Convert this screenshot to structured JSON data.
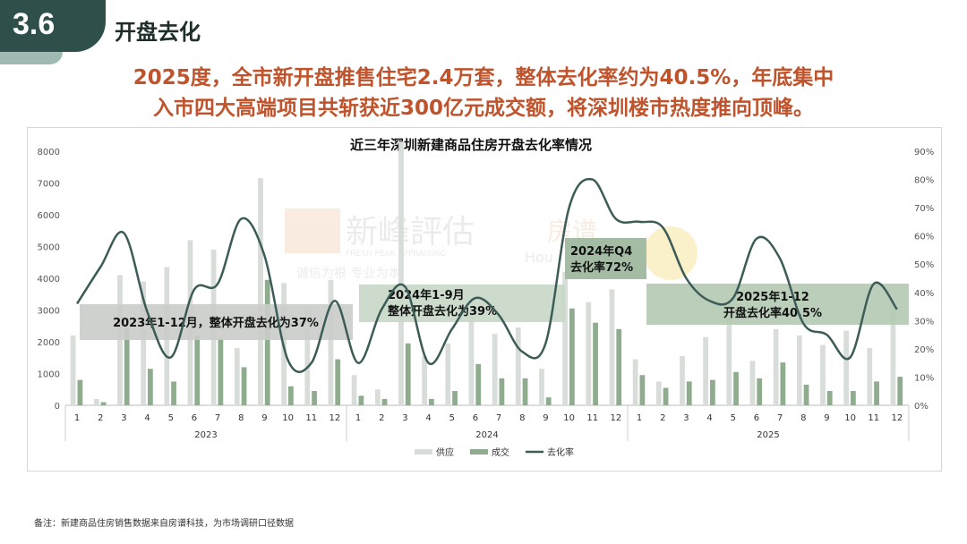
{
  "section": {
    "number": "3.6",
    "title": "开盘去化"
  },
  "headline": {
    "line1": "2025度，全市新开盘推售住宅2.4万套，整体去化率约为40.5%，年底集中",
    "line2": "入市四大高端项目共斩获近300亿元成交额，将深圳楼市热度推向顶峰。"
  },
  "watermark": {
    "brand1": "新峰評估",
    "brand1_en": "FRESH PEAK APPRAISING",
    "brand1_slogan": "诚信为根  专业为本",
    "brand2": "房谱",
    "brand2_en": "Hou"
  },
  "chart_data": {
    "type": "bar+line",
    "title": "近三年深圳新建商品住房开盘去化率情况",
    "years": [
      "2023",
      "2024",
      "2025"
    ],
    "months": [
      "1",
      "2",
      "3",
      "4",
      "5",
      "6",
      "7",
      "8",
      "9",
      "10",
      "11",
      "12",
      "1",
      "2",
      "3",
      "4",
      "5",
      "6",
      "7",
      "8",
      "9",
      "10",
      "11",
      "12",
      "1",
      "2",
      "3",
      "4",
      "5",
      "6",
      "7",
      "8",
      "9",
      "10",
      "11",
      "12"
    ],
    "y_left": {
      "min": 0,
      "max": 8000,
      "ticks": [
        "0",
        "1000",
        "2000",
        "3000",
        "4000",
        "5000",
        "6000",
        "7000",
        "8000"
      ]
    },
    "y_right": {
      "min": 0,
      "max": 90,
      "ticks": [
        "0%",
        "10%",
        "20%",
        "30%",
        "40%",
        "50%",
        "60%",
        "70%",
        "80%",
        "90%"
      ]
    },
    "series": [
      {
        "name": "供应",
        "color": "#d9ddd9",
        "values": [
          2200,
          200,
          4100,
          3900,
          4350,
          5200,
          4900,
          1800,
          7150,
          3850,
          3050,
          3950,
          950,
          500,
          8300,
          1550,
          1950,
          3050,
          2250,
          2450,
          1150,
          4200,
          3250,
          3650,
          1450,
          750,
          1550,
          2150,
          2750,
          1400,
          2400,
          2200,
          1900,
          2350,
          1800,
          3250
        ]
      },
      {
        "name": "成交",
        "color": "#8fac8f",
        "values": [
          800,
          100,
          2450,
          1150,
          750,
          2200,
          2100,
          1200,
          3950,
          600,
          450,
          1450,
          300,
          200,
          1950,
          200,
          450,
          1300,
          850,
          850,
          250,
          3050,
          2600,
          2400,
          950,
          550,
          750,
          800,
          1050,
          850,
          1350,
          650,
          450,
          450,
          750,
          900
        ]
      },
      {
        "name": "去化率",
        "color": "#3d5c57",
        "values": [
          36,
          49,
          61,
          33,
          17,
          41,
          43,
          66,
          53,
          16,
          15,
          37,
          15,
          34,
          42,
          15,
          27,
          38,
          32,
          19,
          22,
          70,
          80,
          66,
          65,
          63,
          45,
          37,
          38,
          59,
          52,
          29,
          25,
          17,
          43,
          34
        ]
      }
    ],
    "annotations": [
      {
        "text": "2023年1-12月，整体开盘去化为37%"
      },
      {
        "text1": "2024年1-9月",
        "text2": "整体开盘去化为39%"
      },
      {
        "text1": "2024年Q4",
        "text2": "去化率72%"
      },
      {
        "text1": "2025年1-12",
        "text2": "开盘去化率40.5%"
      }
    ],
    "legend_position": "bottom-center"
  },
  "footnote": "备注：新建商品住房销售数据来自房谱科技，为市场调研口径数据"
}
